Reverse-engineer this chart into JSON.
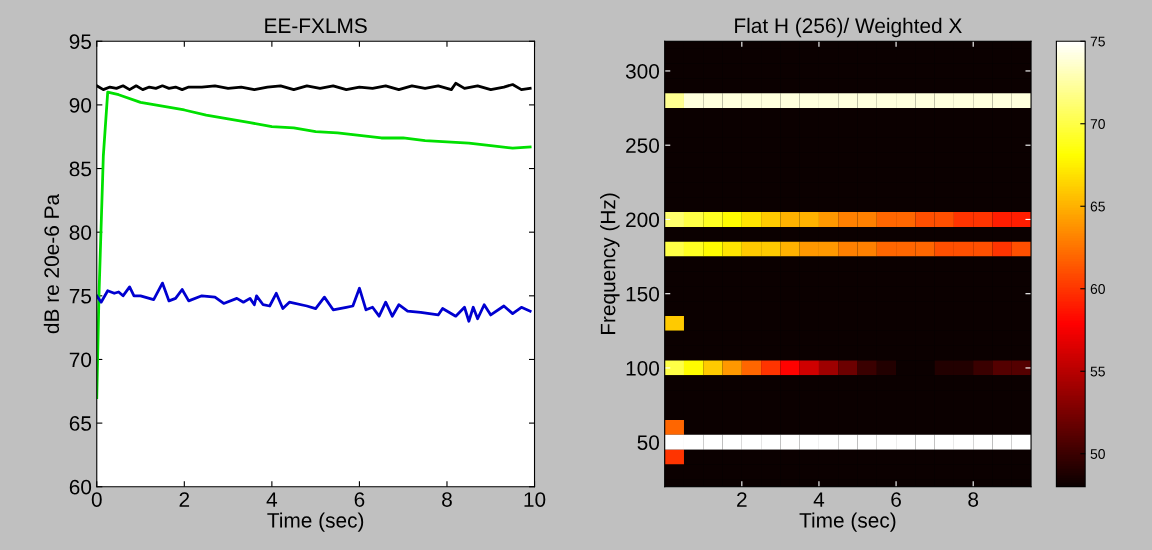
{
  "chart_data": [
    {
      "type": "line",
      "title": "EE-FXLMS",
      "xlabel": "Time (sec)",
      "ylabel": "dB re 20e-6 Pa",
      "xlim": [
        0,
        10
      ],
      "ylim": [
        60,
        95
      ],
      "xticks": [
        0,
        2,
        4,
        6,
        8,
        10
      ],
      "yticks": [
        60,
        65,
        70,
        75,
        80,
        85,
        90,
        95
      ],
      "grid": false,
      "series": [
        {
          "color": "#000000",
          "x": [
            0,
            0.15,
            0.3,
            0.45,
            0.6,
            0.75,
            0.9,
            1.05,
            1.2,
            1.35,
            1.5,
            1.65,
            1.8,
            1.95,
            2.1,
            2.4,
            2.7,
            3.0,
            3.3,
            3.6,
            3.9,
            4.2,
            4.5,
            4.8,
            5.1,
            5.4,
            5.7,
            6.0,
            6.3,
            6.6,
            6.9,
            7.2,
            7.5,
            7.8,
            8.1,
            8.2,
            8.4,
            8.7,
            9.0,
            9.3,
            9.5,
            9.7,
            9.9
          ],
          "values": [
            91.5,
            91.2,
            91.4,
            91.3,
            91.5,
            91.2,
            91.5,
            91.2,
            91.4,
            91.3,
            91.5,
            91.3,
            91.4,
            91.2,
            91.4,
            91.4,
            91.5,
            91.3,
            91.4,
            91.2,
            91.4,
            91.5,
            91.2,
            91.5,
            91.3,
            91.5,
            91.2,
            91.4,
            91.3,
            91.5,
            91.2,
            91.5,
            91.3,
            91.5,
            91.2,
            91.7,
            91.3,
            91.5,
            91.2,
            91.4,
            91.6,
            91.2,
            91.3
          ]
        },
        {
          "color": "#00e000",
          "x": [
            0,
            0.05,
            0.15,
            0.25,
            0.5,
            1.0,
            1.5,
            2.0,
            2.5,
            3.0,
            3.5,
            4.0,
            4.5,
            5.0,
            5.5,
            6.0,
            6.5,
            7.0,
            7.5,
            8.0,
            8.5,
            9.0,
            9.5,
            9.9
          ],
          "values": [
            67,
            75,
            86,
            91,
            90.8,
            90.2,
            89.9,
            89.6,
            89.2,
            88.9,
            88.6,
            88.3,
            88.2,
            87.9,
            87.8,
            87.6,
            87.4,
            87.4,
            87.2,
            87.1,
            87.0,
            86.8,
            86.6,
            86.7
          ]
        },
        {
          "color": "#0000d0",
          "x": [
            0,
            0.1,
            0.25,
            0.4,
            0.5,
            0.6,
            0.75,
            0.85,
            1.0,
            1.3,
            1.5,
            1.65,
            1.8,
            1.95,
            2.1,
            2.4,
            2.7,
            2.9,
            3.2,
            3.35,
            3.5,
            3.6,
            3.65,
            3.8,
            3.95,
            4.1,
            4.25,
            4.4,
            4.8,
            5.0,
            5.2,
            5.4,
            5.7,
            5.85,
            6.0,
            6.15,
            6.3,
            6.45,
            6.6,
            6.75,
            6.9,
            7.1,
            7.4,
            7.8,
            7.9,
            8.2,
            8.4,
            8.5,
            8.6,
            8.7,
            8.85,
            9.0,
            9.3,
            9.5,
            9.7,
            9.9
          ],
          "values": [
            75.0,
            74.5,
            75.4,
            75.2,
            75.3,
            75.0,
            75.7,
            75.0,
            75.0,
            74.7,
            76.0,
            74.6,
            74.8,
            75.5,
            74.6,
            75.0,
            74.9,
            74.4,
            74.8,
            74.5,
            74.8,
            74.3,
            75.0,
            74.3,
            74.2,
            75.2,
            74.0,
            74.5,
            74.2,
            74.0,
            74.9,
            73.9,
            74.1,
            74.2,
            75.6,
            73.9,
            74.1,
            73.4,
            74.5,
            73.4,
            74.3,
            73.8,
            73.7,
            73.5,
            74.0,
            73.4,
            74.1,
            73.0,
            74.1,
            73.2,
            74.3,
            73.5,
            74.2,
            73.6,
            74.1,
            73.8
          ]
        }
      ]
    },
    {
      "type": "heatmap",
      "title": "Flat H (256)/ Weighted X",
      "xlabel": "Time (sec)",
      "ylabel": "Frequency (Hz)",
      "xlim": [
        0,
        9.5
      ],
      "ylim": [
        20,
        320
      ],
      "xticks": [
        2,
        4,
        6,
        8
      ],
      "yticks": [
        50,
        100,
        150,
        200,
        250,
        300
      ],
      "clim": [
        48,
        75
      ],
      "cticks": [
        50,
        55,
        60,
        65,
        70,
        75
      ],
      "x": [
        0.25,
        0.75,
        1.25,
        1.75,
        2.25,
        2.75,
        3.25,
        3.75,
        4.25,
        4.75,
        5.25,
        5.75,
        6.25,
        6.75,
        7.25,
        7.75,
        8.25,
        8.75,
        9.25
      ],
      "y": [
        320,
        310,
        300,
        290,
        280,
        270,
        260,
        250,
        240,
        230,
        220,
        210,
        200,
        190,
        180,
        170,
        160,
        150,
        140,
        130,
        120,
        110,
        100,
        90,
        80,
        70,
        60,
        50,
        40,
        30,
        20
      ],
      "cells": [
        [
          48,
          48,
          48,
          48,
          48,
          48,
          48,
          48,
          48,
          48,
          48,
          48,
          48,
          48,
          48,
          48,
          48,
          48,
          48
        ],
        [
          48,
          48,
          48,
          48,
          48,
          48,
          48,
          48,
          48,
          48,
          48,
          48,
          48,
          48,
          48,
          48,
          48,
          48,
          48
        ],
        [
          48,
          48,
          48,
          48,
          48,
          48,
          48,
          48,
          48,
          48,
          48,
          48,
          48,
          48,
          48,
          48,
          48,
          48,
          48
        ],
        [
          48,
          48,
          48,
          48,
          48,
          48,
          48,
          48,
          48,
          48,
          48,
          48,
          48,
          48,
          48,
          48,
          48,
          48,
          48
        ],
        [
          72,
          74,
          74,
          74,
          74,
          74,
          74,
          74,
          74,
          74,
          74,
          74,
          74,
          74,
          74,
          74,
          74,
          74,
          74
        ],
        [
          48,
          48,
          48,
          48,
          48,
          48,
          48,
          48,
          48,
          48,
          48,
          48,
          48,
          48,
          48,
          48,
          48,
          48,
          48
        ],
        [
          48,
          48,
          48,
          48,
          48,
          48,
          48,
          48,
          48,
          48,
          48,
          48,
          48,
          48,
          48,
          48,
          48,
          48,
          48
        ],
        [
          48,
          48,
          48,
          48,
          48,
          48,
          48,
          48,
          48,
          48,
          48,
          48,
          48,
          48,
          48,
          48,
          48,
          48,
          48
        ],
        [
          48,
          48,
          48,
          48,
          48,
          48,
          48,
          48,
          48,
          48,
          48,
          48,
          48,
          48,
          48,
          48,
          48,
          48,
          48
        ],
        [
          48,
          48,
          48,
          48,
          48,
          48,
          48,
          48,
          48,
          48,
          48,
          48,
          48,
          48,
          48,
          48,
          48,
          48,
          48
        ],
        [
          48,
          48,
          48,
          48,
          48,
          48,
          48,
          48,
          48,
          48,
          48,
          48,
          48,
          48,
          48,
          48,
          48,
          48,
          48
        ],
        [
          48,
          48,
          48,
          48,
          48,
          48,
          48,
          48,
          48,
          48,
          48,
          48,
          48,
          48,
          48,
          48,
          48,
          48,
          48
        ],
        [
          71,
          70,
          69,
          68,
          67,
          66,
          65,
          65,
          64,
          63,
          63,
          62,
          62,
          61,
          61,
          60,
          60,
          59,
          59
        ],
        [
          48,
          48,
          48,
          48,
          48,
          48,
          48,
          48,
          48,
          48,
          48,
          48,
          48,
          48,
          48,
          48,
          48,
          48,
          48
        ],
        [
          70,
          69,
          68,
          67,
          66,
          66,
          65,
          64,
          64,
          63,
          63,
          62,
          62,
          62,
          61,
          61,
          61,
          60,
          61
        ],
        [
          48,
          48,
          48,
          48,
          48,
          48,
          48,
          48,
          48,
          48,
          48,
          48,
          48,
          48,
          48,
          48,
          48,
          48,
          48
        ],
        [
          48,
          48,
          48,
          48,
          48,
          48,
          48,
          48,
          48,
          48,
          48,
          48,
          48,
          48,
          48,
          48,
          48,
          48,
          48
        ],
        [
          48,
          48,
          48,
          48,
          48,
          48,
          48,
          48,
          48,
          48,
          48,
          48,
          48,
          48,
          48,
          48,
          48,
          48,
          48
        ],
        [
          48,
          48,
          48,
          48,
          48,
          48,
          48,
          48,
          48,
          48,
          48,
          48,
          48,
          48,
          48,
          48,
          48,
          48,
          48
        ],
        [
          66,
          48,
          48,
          48,
          48,
          48,
          48,
          48,
          48,
          48,
          48,
          48,
          48,
          48,
          48,
          48,
          48,
          48,
          48
        ],
        [
          48,
          48,
          48,
          48,
          48,
          48,
          48,
          48,
          48,
          48,
          48,
          48,
          48,
          48,
          48,
          48,
          48,
          48,
          48
        ],
        [
          48,
          48,
          48,
          48,
          48,
          48,
          48,
          48,
          48,
          48,
          48,
          48,
          48,
          48,
          48,
          48,
          48,
          48,
          48
        ],
        [
          70,
          68,
          66,
          64,
          62,
          60,
          58,
          56,
          54,
          52,
          50,
          49,
          48,
          48,
          49,
          49,
          50,
          51,
          51
        ],
        [
          48,
          48,
          48,
          48,
          48,
          48,
          48,
          48,
          48,
          48,
          48,
          48,
          48,
          48,
          48,
          48,
          48,
          48,
          48
        ],
        [
          48,
          48,
          48,
          48,
          48,
          48,
          48,
          48,
          48,
          48,
          48,
          48,
          48,
          48,
          48,
          48,
          48,
          48,
          48
        ],
        [
          48,
          48,
          48,
          48,
          48,
          48,
          48,
          48,
          48,
          48,
          48,
          48,
          48,
          48,
          48,
          48,
          48,
          48,
          48
        ],
        [
          62,
          48,
          48,
          48,
          48,
          48,
          48,
          48,
          48,
          48,
          48,
          48,
          48,
          48,
          48,
          48,
          48,
          48,
          48
        ],
        [
          75,
          75,
          75,
          75,
          75,
          75,
          75,
          75,
          75,
          75,
          75,
          75,
          75,
          75,
          75,
          75,
          75,
          75,
          75
        ],
        [
          60,
          48,
          48,
          48,
          48,
          48,
          48,
          48,
          48,
          48,
          48,
          48,
          48,
          48,
          48,
          48,
          48,
          48,
          48
        ],
        [
          48,
          48,
          48,
          48,
          48,
          48,
          48,
          48,
          48,
          48,
          48,
          48,
          48,
          48,
          48,
          48,
          48,
          48,
          48
        ],
        [
          48,
          48,
          48,
          48,
          48,
          48,
          48,
          48,
          48,
          48,
          48,
          48,
          48,
          48,
          48,
          48,
          48,
          48,
          48
        ]
      ]
    }
  ]
}
